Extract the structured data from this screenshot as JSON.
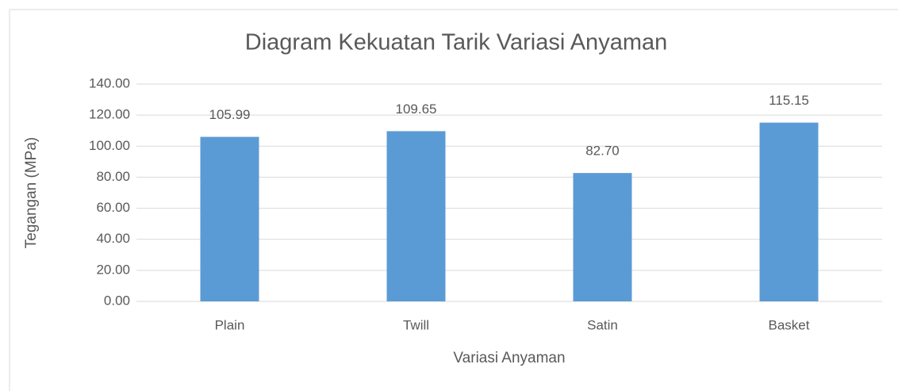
{
  "chart_data": {
    "type": "bar",
    "title": "Diagram Kekuatan Tarik Variasi Anyaman",
    "x_label": "Variasi Anyaman",
    "y_label": "Tegangan (MPa)",
    "categories": [
      "Plain",
      "Twill",
      "Satin",
      "Basket"
    ],
    "values": [
      105.99,
      109.65,
      82.7,
      115.15
    ],
    "value_labels": [
      "105.99",
      "109.65",
      "82.70",
      "115.15"
    ],
    "color": "#5b9bd5",
    "ylim": [
      0,
      140
    ],
    "yticks": [
      {
        "value": 0,
        "label": "0.00"
      },
      {
        "value": 20,
        "label": "20.00"
      },
      {
        "value": 40,
        "label": "40.00"
      },
      {
        "value": 60,
        "label": "60.00"
      },
      {
        "value": 80,
        "label": "80.00"
      },
      {
        "value": 100,
        "label": "100.00"
      },
      {
        "value": 120,
        "label": "120.00"
      },
      {
        "value": 140,
        "label": "140.00"
      }
    ],
    "grid": true
  }
}
